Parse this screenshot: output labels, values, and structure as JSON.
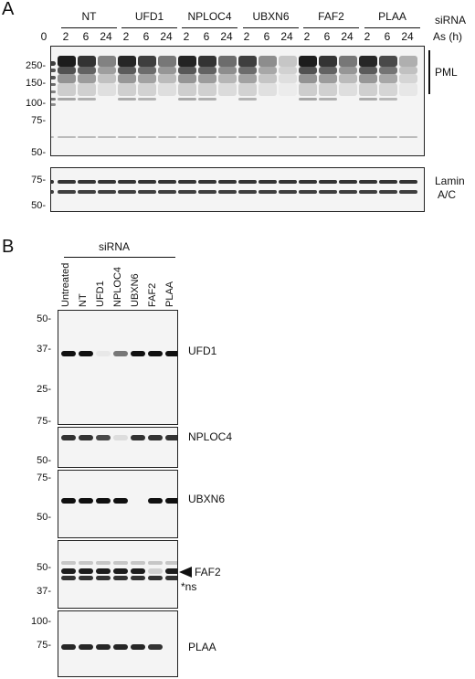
{
  "panelA": {
    "letter": "A",
    "sirna_label": "siRNA",
    "as_label": "As (h)",
    "groups": [
      "NT",
      "UFD1",
      "NPLOC4",
      "UBXN6",
      "FAF2",
      "PLAA"
    ],
    "lane_labels": [
      "0",
      "2",
      "6",
      "24",
      "2",
      "6",
      "24",
      "2",
      "6",
      "24",
      "2",
      "6",
      "24",
      "2",
      "6",
      "24",
      "2",
      "6",
      "24"
    ],
    "pml_markers": [
      "250-",
      "150-",
      "100-",
      "75-",
      "50-"
    ],
    "lamin_markers": [
      "75-",
      "50-"
    ],
    "pml_label": "PML",
    "lamin_label_line1": "Lamin",
    "lamin_label_line2": "A/C"
  },
  "panelB": {
    "letter": "B",
    "sirna_label": "siRNA",
    "lanes": [
      "Untreated",
      "NT",
      "UFD1",
      "NPLOC4",
      "UBXN6",
      "FAF2",
      "PLAA"
    ],
    "blots": [
      {
        "label": "UFD1",
        "markers": [
          "50-",
          "37-",
          "25-"
        ]
      },
      {
        "label": "NPLOC4",
        "markers": [
          "75-",
          "50-"
        ]
      },
      {
        "label": "UBXN6",
        "markers": [
          "75-",
          "50-"
        ]
      },
      {
        "label": "FAF2",
        "ns_label": "*ns",
        "markers": [
          "50-",
          "37-"
        ]
      },
      {
        "label": "PLAA",
        "markers": [
          "100-",
          "75-"
        ]
      }
    ]
  }
}
